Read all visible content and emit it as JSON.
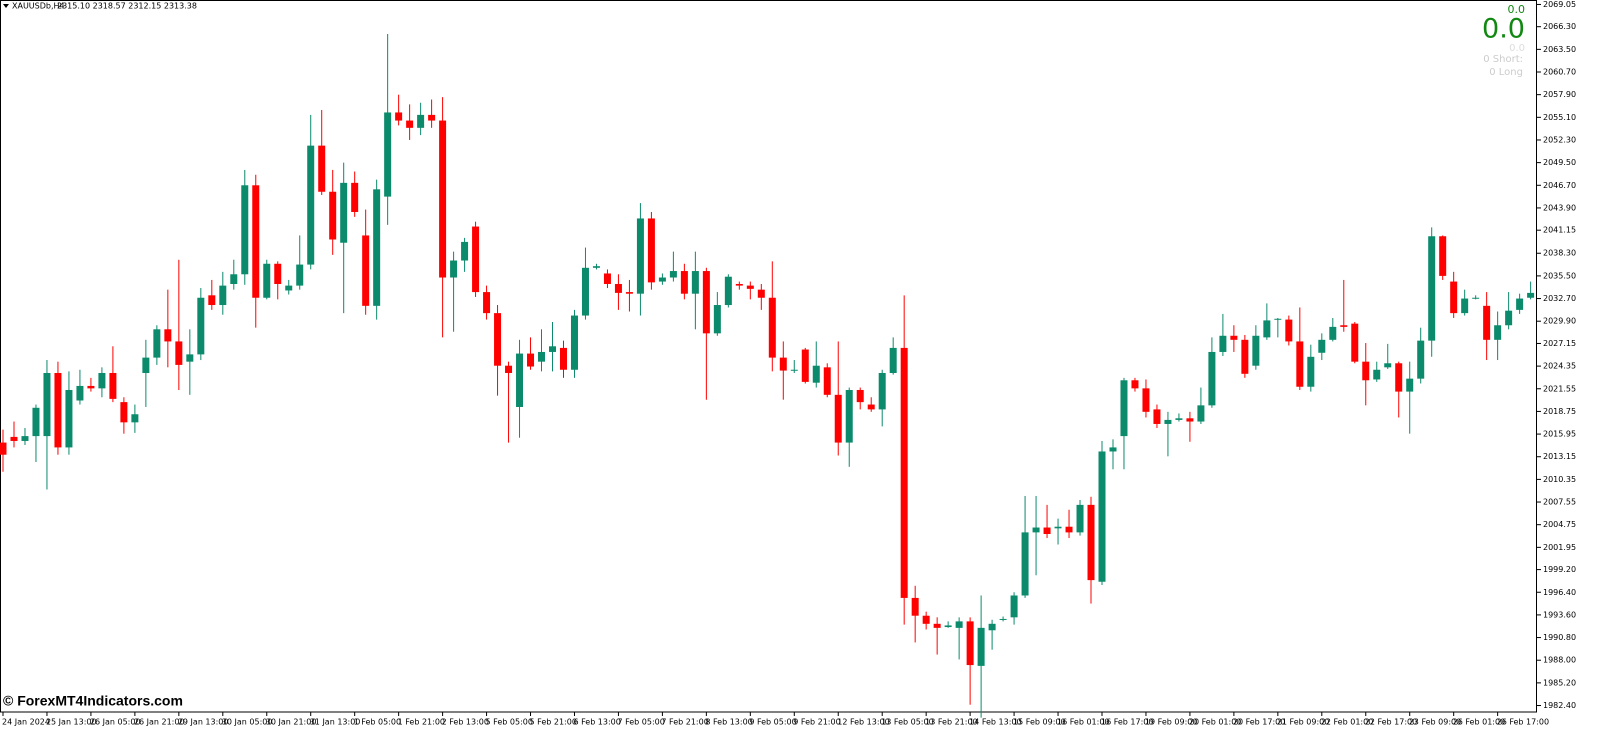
{
  "header": {
    "symbol": "XAUUSDb,H4",
    "ohlc": "2315.10 2318.57 2312.15 2313.38"
  },
  "panel": {
    "small": "0.0",
    "big": "0.0",
    "grey": "0.0",
    "short": "0  Short:",
    "long": "0  Long"
  },
  "watermark": "© ForexMT4Indicators.com",
  "chart_data": {
    "type": "candlestick",
    "up_color": "#0b8a6c",
    "down_color": "#ff0000",
    "grid": false,
    "ylim": [
      1981.6,
      2069.6
    ],
    "yticks": [
      {
        "value": 1982.4,
        "label": "1982.40"
      },
      {
        "value": 1985.2,
        "label": "1985.20"
      },
      {
        "value": 1988.0,
        "label": "1988.00"
      },
      {
        "value": 1990.8,
        "label": "1990.80"
      },
      {
        "value": 1993.6,
        "label": "1993.60"
      },
      {
        "value": 1996.4,
        "label": "1996.40"
      },
      {
        "value": 1999.2,
        "label": "1999.20"
      },
      2001.95,
      2004.75,
      2007.55,
      2010.35,
      2013.15,
      2015.95,
      2018.75,
      2021.55,
      2024.35,
      2027.15,
      {
        "value": 2029.9,
        "label": "2029.90"
      },
      {
        "value": 2032.7,
        "label": "2032.70"
      },
      {
        "value": 2035.5,
        "label": "2035.50"
      },
      {
        "value": 2038.3,
        "label": "2038.30"
      },
      2041.15,
      {
        "value": 2043.9,
        "label": "2043.90"
      },
      {
        "value": 2046.7,
        "label": "2046.70"
      },
      {
        "value": 2049.5,
        "label": "2049.50"
      },
      {
        "value": 2052.3,
        "label": "2052.30"
      },
      {
        "value": 2055.1,
        "label": "2055.10"
      },
      {
        "value": 2057.9,
        "label": "2057.90"
      },
      {
        "value": 2060.7,
        "label": "2060.70"
      },
      {
        "value": 2063.5,
        "label": "2063.50"
      },
      {
        "value": 2066.3,
        "label": "2066.30"
      },
      2069.05
    ],
    "categories": [
      "24 Jan 2024",
      null,
      null,
      null,
      "25 Jan 13:00",
      null,
      null,
      null,
      "26 Jan 05:00",
      null,
      null,
      null,
      "26 Jan 21:00",
      null,
      null,
      null,
      "29 Jan 13:00",
      null,
      null,
      null,
      "30 Jan 05:00",
      null,
      null,
      null,
      "30 Jan 21:00",
      null,
      null,
      null,
      "31 Jan 13:00",
      null,
      null,
      null,
      "1 Feb 05:00",
      null,
      null,
      null,
      "1 Feb 21:00",
      null,
      null,
      null,
      "2 Feb 13:00",
      null,
      null,
      null,
      "5 Feb 05:00",
      null,
      null,
      null,
      "5 Feb 21:00",
      null,
      null,
      null,
      "6 Feb 13:00",
      null,
      null,
      null,
      "7 Feb 05:00",
      null,
      null,
      null,
      "7 Feb 21:00",
      null,
      null,
      null,
      "8 Feb 13:00",
      null,
      null,
      null,
      "9 Feb 05:00",
      null,
      null,
      null,
      "9 Feb 21:00",
      null,
      null,
      null,
      "12 Feb 13:00",
      null,
      null,
      null,
      "13 Feb 05:00",
      null,
      null,
      null,
      "13 Feb 21:00",
      null,
      null,
      null,
      "14 Feb 13:00",
      null,
      null,
      null,
      "15 Feb 09:00",
      null,
      null,
      null,
      "16 Feb 01:00",
      null,
      null,
      null,
      "16 Feb 17:00",
      null,
      null,
      null,
      "19 Feb 09:00",
      null,
      null,
      null,
      "20 Feb 01:00",
      null,
      null,
      null,
      "20 Feb 17:00",
      null,
      null,
      null,
      "21 Feb 09:00",
      null,
      null,
      null,
      "22 Feb 01:00",
      null,
      null,
      null,
      "22 Feb 17:00",
      null,
      null,
      null,
      "23 Feb 09:00",
      null,
      null,
      null,
      "26 Feb 01:00",
      null,
      null,
      null,
      "26 Feb 17:00",
      null,
      null,
      null
    ],
    "open": [
      2014.9,
      2015.6,
      2015.1,
      2015.7,
      2015.7,
      2023.5,
      2014.3,
      2020.1,
      2021.9,
      2021.6,
      2023.5,
      2019.9,
      2017.4,
      2023.5,
      2025.4,
      2028.9,
      2027.4,
      2024.9,
      2025.8,
      2033.1,
      2031.9,
      2034.5,
      2035.7,
      2046.7,
      2032.8,
      2037.0,
      2033.7,
      2034.3,
      2036.9,
      2051.6,
      2045.9,
      2039.6,
      2047.0,
      2040.5,
      2031.8,
      2045.3,
      2055.7,
      2054.7,
      2053.8,
      2055.4,
      2054.7,
      2035.3,
      2037.4,
      2041.6,
      2033.5,
      2030.9,
      2024.4,
      2019.3,
      2025.9,
      2024.9,
      2026.1,
      2026.6,
      2023.9,
      2030.6,
      2036.5,
      2035.8,
      2034.5,
      2033.5,
      2033.3,
      2042.6,
      2034.8,
      2035.3,
      2036.1,
      2033.3,
      2036.1,
      2028.4,
      2031.9,
      2034.5,
      2034.3,
      2033.8,
      2032.8,
      2025.4,
      2023.8,
      2026.4,
      2022.3,
      2024.2,
      2020.8,
      2014.9,
      2021.4,
      2019.6,
      2019.0,
      2023.5,
      2026.6,
      1995.7,
      1993.5,
      1992.5,
      1992.1,
      1992.0,
      1992.8,
      1987.3,
      1991.7,
      1993.0,
      1993.3,
      1996.0,
      2003.8,
      2004.4,
      2004.3,
      2004.5,
      2003.8,
      2007.2,
      1997.7,
      2013.8,
      2015.7,
      2022.6,
      2021.6,
      2019.0,
      2017.2,
      2017.7,
      2017.9,
      2017.5,
      2019.5,
      2026.1,
      2028.1,
      2027.6,
      2024.4,
      2027.9,
      2030.1,
      2030.1,
      2027.4,
      2021.8,
      2026.0,
      2027.6,
      2029.4,
      2029.6,
      2024.9,
      2022.7,
      2024.2,
      2024.7,
      2021.2,
      2022.8,
      2027.5,
      2040.4,
      2034.8,
      2030.9,
      2032.7,
      2031.8,
      2027.6,
      2029.4,
      2031.3,
      2032.8
    ],
    "high": [
      2016.5,
      2017.5,
      2016.7,
      2019.6,
      2025.1,
      2024.9,
      2023.7,
      2023.9,
      2022.9,
      2024.2,
      2026.8,
      2020.5,
      2019.6,
      2027.6,
      2029.4,
      2033.8,
      2037.5,
      2028.9,
      2034.0,
      2035.0,
      2036.0,
      2037.5,
      2048.6,
      2048.0,
      2037.5,
      2037.3,
      2035.0,
      2040.5,
      2055.4,
      2056.0,
      2048.6,
      2049.5,
      2048.4,
      2043.7,
      2047.4,
      2065.4,
      2057.9,
      2056.7,
      2056.9,
      2057.3,
      2057.6,
      2038.5,
      2040.2,
      2042.2,
      2034.3,
      2031.9,
      2024.9,
      2027.6,
      2027.9,
      2028.9,
      2029.8,
      2027.5,
      2031.3,
      2039.0,
      2037.0,
      2036.3,
      2035.7,
      2035.0,
      2044.5,
      2043.4,
      2035.8,
      2038.5,
      2037.0,
      2038.5,
      2036.5,
      2033.5,
      2035.7,
      2034.8,
      2034.8,
      2034.5,
      2037.3,
      2027.4,
      2025.1,
      2026.6,
      2027.4,
      2024.7,
      2027.4,
      2021.7,
      2021.7,
      2020.5,
      2023.9,
      2027.9,
      2033.1,
      1997.2,
      1994.0,
      1993.3,
      1992.8,
      1993.3,
      1993.3,
      1996.0,
      1993.0,
      1993.4,
      1996.4,
      2008.3,
      2008.3,
      2007.2,
      2005.5,
      2006.6,
      2007.8,
      2008.2,
      2015.1,
      2015.3,
      2022.9,
      2022.9,
      2022.7,
      2019.6,
      2018.7,
      2018.5,
      2018.7,
      2021.7,
      2027.9,
      2030.8,
      2029.4,
      2028.2,
      2029.4,
      2032.1,
      2030.3,
      2030.6,
      2031.6,
      2027.0,
      2028.4,
      2030.3,
      2035.0,
      2029.8,
      2027.2,
      2024.9,
      2027.1,
      2024.9,
      2024.9,
      2029.1,
      2041.5,
      2040.5,
      2036.0,
      2033.8,
      2033.1,
      2033.5,
      2031.1,
      2033.5,
      2033.3,
      2034.8
    ],
    "low": [
      2011.3,
      2014.3,
      2014.6,
      2012.5,
      2009.1,
      2013.4,
      2013.4,
      2019.6,
      2021.2,
      2020.5,
      2019.9,
      2016.0,
      2016.1,
      2019.3,
      2024.5,
      2024.2,
      2021.4,
      2020.8,
      2025.1,
      2031.3,
      2030.7,
      2033.8,
      2034.4,
      2029.1,
      2032.6,
      2032.6,
      2033.2,
      2033.8,
      2036.3,
      2045.5,
      2038.1,
      2030.9,
      2042.8,
      2030.7,
      2030.1,
      2041.8,
      2054.1,
      2052.3,
      2052.9,
      2053.8,
      2027.9,
      2028.6,
      2036.0,
      2032.9,
      2030.1,
      2020.7,
      2014.9,
      2015.5,
      2023.9,
      2023.7,
      2023.7,
      2022.9,
      2022.9,
      2030.1,
      2036.3,
      2034.0,
      2031.3,
      2031.1,
      2030.6,
      2033.8,
      2034.4,
      2034.8,
      2032.6,
      2028.9,
      2020.2,
      2028.1,
      2031.6,
      2033.8,
      2032.6,
      2031.3,
      2023.7,
      2020.2,
      2023.5,
      2022.2,
      2021.7,
      2020.5,
      2013.3,
      2011.9,
      2019.0,
      2018.7,
      2016.9,
      2023.3,
      1992.4,
      1990.2,
      1991.8,
      1988.7,
      1992.0,
      1988.1,
      1982.5,
      1980.9,
      1989.3,
      1992.8,
      1992.4,
      1995.7,
      1998.5,
      2003.1,
      2002.3,
      2003.1,
      2003.4,
      1995.0,
      1997.3,
      2011.6,
      2011.6,
      2021.2,
      2018.0,
      2016.7,
      2013.2,
      2017.5,
      2015.0,
      2017.2,
      2019.2,
      2025.6,
      2026.1,
      2022.9,
      2023.9,
      2027.6,
      2027.9,
      2026.9,
      2021.4,
      2021.2,
      2025.1,
      2027.4,
      2028.6,
      2024.7,
      2019.5,
      2022.4,
      2024.0,
      2018.0,
      2016.0,
      2022.2,
      2025.5,
      2035.0,
      2030.3,
      2030.6,
      2032.6,
      2025.1,
      2025.1,
      2028.9,
      2030.8,
      2032.6
    ],
    "close": [
      2013.4,
      2015.1,
      2015.7,
      2019.2,
      2023.5,
      2014.3,
      2021.4,
      2021.9,
      2021.6,
      2023.5,
      2020.3,
      2017.4,
      2018.4,
      2025.4,
      2028.9,
      2027.4,
      2024.5,
      2025.8,
      2032.8,
      2031.9,
      2034.3,
      2035.7,
      2046.7,
      2032.8,
      2037.0,
      2034.5,
      2034.3,
      2036.9,
      2051.6,
      2045.9,
      2040.0,
      2047.0,
      2043.4,
      2031.8,
      2046.2,
      2055.7,
      2054.7,
      2053.8,
      2055.4,
      2054.7,
      2035.3,
      2037.4,
      2039.7,
      2033.5,
      2030.9,
      2024.4,
      2023.5,
      2025.9,
      2024.3,
      2026.1,
      2026.8,
      2023.9,
      2030.6,
      2036.5,
      2036.7,
      2034.5,
      2033.4,
      2033.3,
      2042.6,
      2034.7,
      2035.3,
      2036.1,
      2033.3,
      2036.1,
      2028.4,
      2031.9,
      2035.4,
      2034.3,
      2033.9,
      2032.8,
      2025.4,
      2023.8,
      2023.9,
      2022.4,
      2024.4,
      2020.8,
      2014.9,
      2021.4,
      2019.9,
      2019.0,
      2023.5,
      2026.6,
      1995.7,
      1993.5,
      1992.5,
      1992.0,
      1992.3,
      1992.8,
      1987.4,
      1992.0,
      1992.5,
      1993.1,
      1996.0,
      2003.8,
      2004.4,
      2003.6,
      2004.5,
      2003.8,
      2007.2,
      1997.9,
      2013.8,
      2014.3,
      2022.6,
      2021.6,
      2018.7,
      2017.2,
      2017.7,
      2017.9,
      2017.5,
      2019.5,
      2026.1,
      2028.1,
      2027.6,
      2023.4,
      2028.1,
      2030.0,
      2030.2,
      2027.4,
      2021.8,
      2025.5,
      2027.6,
      2029.2,
      2029.2,
      2024.9,
      2022.6,
      2023.9,
      2024.7,
      2021.2,
      2022.8,
      2027.5,
      2040.4,
      2035.5,
      2030.9,
      2032.7,
      2032.8,
      2027.6,
      2029.4,
      2031.2,
      2032.7,
      2033.4
    ]
  }
}
